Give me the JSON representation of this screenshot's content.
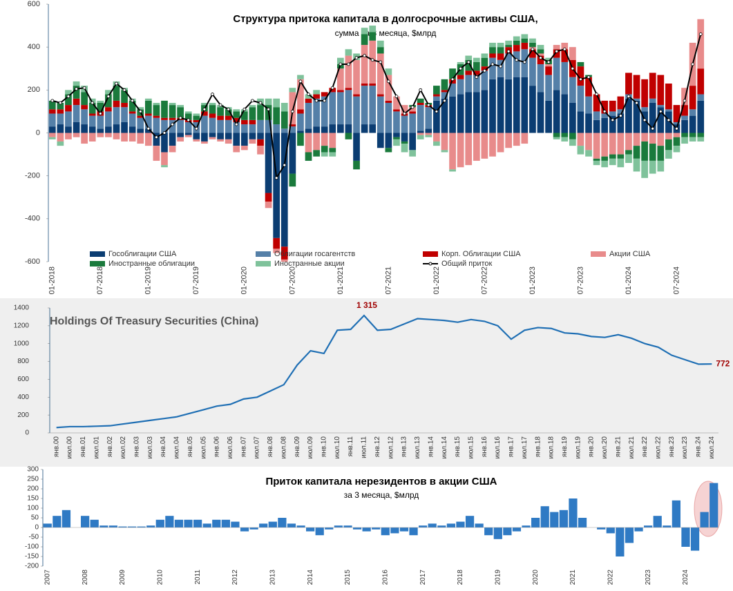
{
  "chart_data": [
    {
      "type": "stacked_bar",
      "title": "Структура притока капитала в долгосрочные активы США,",
      "subtitle": "сумма за 3 месяца, $млрд",
      "categories": [
        "01-2018",
        null,
        null,
        null,
        null,
        null,
        "07-2018",
        null,
        null,
        null,
        null,
        null,
        "01-2019",
        null,
        null,
        null,
        null,
        null,
        "07-2019",
        null,
        null,
        null,
        null,
        null,
        "01-2020",
        null,
        null,
        null,
        null,
        null,
        "07-2020",
        null,
        null,
        null,
        null,
        null,
        "01-2021",
        null,
        null,
        null,
        null,
        null,
        "07-2021",
        null,
        null,
        null,
        null,
        null,
        "01-2022",
        null,
        null,
        null,
        null,
        null,
        "07-2022",
        null,
        null,
        null,
        null,
        null,
        "01-2023",
        null,
        null,
        null,
        null,
        null,
        "07-2023",
        null,
        null,
        null,
        null,
        null,
        "01-2024",
        null,
        null,
        null,
        null,
        null,
        "07-2024",
        null,
        null,
        null
      ],
      "ylim": [
        -600,
        600
      ],
      "yticks": [
        -600,
        -400,
        -200,
        0,
        200,
        400,
        600
      ],
      "series": [
        {
          "name": "Гособлигации США",
          "color": "#0b3d72",
          "values": [
            30,
            40,
            30,
            50,
            40,
            30,
            20,
            30,
            40,
            50,
            30,
            20,
            20,
            -60,
            -90,
            -60,
            -20,
            -10,
            -30,
            -40,
            -20,
            -30,
            -30,
            -60,
            -60,
            -30,
            -30,
            -280,
            -490,
            -530,
            -190,
            10,
            20,
            30,
            30,
            40,
            40,
            40,
            -130,
            40,
            40,
            -70,
            -70,
            -20,
            -40,
            -80,
            10,
            20,
            150,
            160,
            170,
            180,
            190,
            190,
            200,
            250,
            260,
            250,
            260,
            260,
            220,
            190,
            150,
            200,
            180,
            140,
            100,
            90,
            60,
            70,
            80,
            90,
            160,
            150,
            100,
            140,
            120,
            100,
            40,
            60,
            80,
            150
          ]
        },
        {
          "name": "Облигации госагентств",
          "color": "#5580a8",
          "values": [
            60,
            50,
            70,
            80,
            70,
            50,
            60,
            70,
            80,
            70,
            60,
            50,
            60,
            70,
            60,
            60,
            60,
            50,
            50,
            80,
            70,
            60,
            60,
            50,
            40,
            40,
            60,
            60,
            40,
            20,
            30,
            80,
            120,
            130,
            140,
            150,
            150,
            160,
            170,
            180,
            180,
            170,
            140,
            100,
            80,
            90,
            120,
            100,
            20,
            30,
            60,
            70,
            80,
            80,
            90,
            100,
            80,
            120,
            120,
            130,
            130,
            130,
            120,
            150,
            150,
            120,
            120,
            80,
            40,
            20,
            20,
            20,
            20,
            10,
            20,
            20,
            10,
            10,
            10,
            20,
            30,
            30
          ]
        },
        {
          "name": "Корп. Облигации США",
          "color": "#c00000",
          "values": [
            20,
            20,
            30,
            30,
            20,
            10,
            20,
            20,
            30,
            20,
            10,
            10,
            10,
            10,
            10,
            10,
            10,
            10,
            10,
            20,
            20,
            20,
            20,
            20,
            20,
            20,
            -30,
            -40,
            -50,
            -60,
            10,
            20,
            20,
            20,
            20,
            20,
            10,
            10,
            10,
            10,
            10,
            10,
            10,
            10,
            10,
            10,
            10,
            10,
            10,
            10,
            20,
            20,
            20,
            20,
            20,
            20,
            30,
            30,
            30,
            30,
            40,
            40,
            40,
            40,
            60,
            80,
            90,
            90,
            80,
            60,
            50,
            60,
            100,
            110,
            130,
            120,
            140,
            120,
            80,
            50,
            110,
            120
          ]
        },
        {
          "name": "Акции США",
          "color": "#e88b8b",
          "values": [
            -20,
            -40,
            -30,
            -20,
            -50,
            -40,
            -20,
            -20,
            -30,
            -40,
            -40,
            -50,
            -60,
            -70,
            -60,
            -30,
            -20,
            -10,
            -10,
            -10,
            -10,
            -10,
            -20,
            -30,
            -20,
            -20,
            -40,
            -30,
            -20,
            -10,
            150,
            140,
            -90,
            -80,
            -60,
            -70,
            100,
            150,
            160,
            180,
            200,
            190,
            120,
            60,
            40,
            20,
            -10,
            -10,
            -40,
            -80,
            -170,
            -160,
            -150,
            -130,
            -120,
            -110,
            -90,
            -70,
            -60,
            -50,
            10,
            10,
            10,
            20,
            30,
            60,
            -60,
            -80,
            -120,
            -110,
            -100,
            -100,
            -80,
            -60,
            -40,
            -50,
            -60,
            -30,
            -20,
            80,
            200,
            230
          ]
        },
        {
          "name": "Иностранные облигации",
          "color": "#1a7a3c",
          "values": [
            40,
            30,
            50,
            60,
            60,
            50,
            40,
            60,
            70,
            60,
            50,
            30,
            60,
            50,
            80,
            60,
            50,
            30,
            20,
            30,
            40,
            40,
            30,
            30,
            40,
            60,
            70,
            70,
            80,
            80,
            -60,
            -60,
            -40,
            -30,
            -30,
            -20,
            20,
            -30,
            -40,
            50,
            40,
            30,
            -20,
            -10,
            -10,
            10,
            20,
            10,
            40,
            50,
            50,
            50,
            50,
            40,
            40,
            30,
            30,
            10,
            20,
            20,
            20,
            20,
            20,
            -20,
            -20,
            -30,
            20,
            10,
            -10,
            -20,
            -20,
            -20,
            -20,
            -60,
            -90,
            -80,
            -70,
            -50,
            -40,
            -20,
            -20,
            -20
          ]
        },
        {
          "name": "Иностранные акции",
          "color": "#7fc29b",
          "values": [
            -10,
            -20,
            20,
            20,
            30,
            20,
            10,
            20,
            20,
            10,
            10,
            10,
            10,
            10,
            -10,
            10,
            10,
            10,
            10,
            10,
            10,
            10,
            10,
            10,
            10,
            10,
            30,
            30,
            40,
            40,
            20,
            20,
            20,
            20,
            -20,
            -20,
            30,
            30,
            30,
            30,
            30,
            30,
            30,
            -30,
            -40,
            -30,
            -20,
            -10,
            -20,
            -10,
            -10,
            10,
            20,
            20,
            20,
            20,
            20,
            20,
            20,
            20,
            20,
            20,
            10,
            -10,
            -20,
            -30,
            -40,
            -30,
            -20,
            -30,
            -30,
            -40,
            -40,
            -60,
            -80,
            -60,
            -50,
            -40,
            -30,
            -30,
            -20,
            -20
          ]
        },
        {
          "name": "Общий приток",
          "color": "#000000",
          "type": "line",
          "values": [
            150,
            140,
            170,
            205,
            210,
            140,
            90,
            170,
            230,
            200,
            150,
            100,
            20,
            -20,
            0,
            40,
            70,
            60,
            20,
            110,
            180,
            130,
            110,
            40,
            110,
            150,
            140,
            110,
            -210,
            -150,
            100,
            240,
            180,
            150,
            150,
            210,
            320,
            320,
            350,
            360,
            340,
            330,
            240,
            170,
            90,
            120,
            200,
            130,
            100,
            150,
            250,
            300,
            330,
            260,
            290,
            320,
            310,
            380,
            340,
            330,
            390,
            350,
            330,
            380,
            390,
            300,
            250,
            260,
            180,
            100,
            60,
            80,
            170,
            140,
            60,
            20,
            100,
            60,
            20,
            150,
            320,
            460
          ]
        }
      ]
    },
    {
      "type": "line",
      "title": "Holdings Of Treasury Securities (China)",
      "categories": [
        "янв.00",
        "июл.00",
        "янв.01",
        "июл.01",
        "янв.02",
        "июл.02",
        "янв.03",
        "июл.03",
        "янв.04",
        "июл.04",
        "янв.05",
        "июл.05",
        "янв.06",
        "июл.06",
        "янв.07",
        "июл.07",
        "янв.08",
        "июл.08",
        "янв.09",
        "июл.09",
        "янв.10",
        "июл.10",
        "янв.11",
        "июл.11",
        "янв.12",
        "июл.12",
        "янв.13",
        "июл.13",
        "янв.14",
        "июл.14",
        "янв.15",
        "июл.15",
        "янв.16",
        "июл.16",
        "янв.17",
        "июл.17",
        "янв.18",
        "июл.18",
        "янв.19",
        "июл.19",
        "янв.20",
        "июл.20",
        "янв.21",
        "июл.21",
        "янв.22",
        "июл.22",
        "янв.23",
        "июл.23",
        "янв.24",
        "июл.24"
      ],
      "values": [
        60,
        70,
        70,
        75,
        80,
        100,
        120,
        140,
        160,
        180,
        220,
        260,
        300,
        320,
        380,
        400,
        470,
        540,
        760,
        920,
        890,
        1150,
        1160,
        1315,
        1150,
        1160,
        1220,
        1280,
        1270,
        1260,
        1240,
        1270,
        1250,
        1200,
        1050,
        1150,
        1180,
        1170,
        1120,
        1110,
        1080,
        1070,
        1100,
        1060,
        1000,
        960,
        870,
        820,
        770,
        772
      ],
      "value_labels": [
        null,
        null,
        null,
        null,
        null,
        null,
        null,
        null,
        null,
        null,
        null,
        null,
        null,
        null,
        null,
        null,
        null,
        null,
        null,
        null,
        null,
        null,
        null,
        "1 315",
        null,
        null,
        null,
        null,
        null,
        null,
        null,
        null,
        null,
        null,
        null,
        null,
        null,
        null,
        null,
        null,
        null,
        null,
        null,
        null,
        null,
        null,
        null,
        null,
        null,
        "772"
      ],
      "color": "#1f6fb4",
      "ylim": [
        0,
        1400
      ],
      "yticks": [
        0,
        200,
        400,
        600,
        800,
        1000,
        1200,
        1400
      ]
    },
    {
      "type": "bar",
      "title": "Приток капитала нерезидентов в акции США",
      "subtitle": "за 3 месяца, $млрд",
      "categories": [
        "2007",
        null,
        null,
        null,
        "2008",
        null,
        null,
        null,
        "2009",
        null,
        null,
        null,
        "2010",
        null,
        null,
        null,
        "2011",
        null,
        null,
        null,
        "2012",
        null,
        null,
        null,
        "2013",
        null,
        null,
        null,
        "2014",
        null,
        null,
        null,
        "2015",
        null,
        null,
        null,
        "2016",
        null,
        null,
        null,
        "2017",
        null,
        null,
        null,
        "2018",
        null,
        null,
        null,
        "2019",
        null,
        null,
        null,
        "2020",
        null,
        null,
        null,
        "2021",
        null,
        null,
        null,
        "2022",
        null,
        null,
        null,
        "2023",
        null,
        null,
        null,
        "2024",
        null,
        null,
        null
      ],
      "values": [
        20,
        60,
        90,
        0,
        60,
        40,
        10,
        10,
        5,
        5,
        5,
        10,
        40,
        60,
        40,
        40,
        40,
        20,
        40,
        40,
        30,
        -20,
        -10,
        20,
        30,
        50,
        20,
        10,
        -20,
        -40,
        -10,
        10,
        10,
        -10,
        -20,
        -10,
        -40,
        -30,
        -20,
        -40,
        10,
        20,
        10,
        20,
        30,
        60,
        20,
        -40,
        -60,
        -40,
        -20,
        10,
        50,
        110,
        80,
        90,
        150,
        50,
        0,
        -10,
        -30,
        -150,
        -80,
        -20,
        10,
        60,
        10,
        140,
        -100,
        -120,
        80,
        230
      ],
      "color": "#2f7ac4",
      "ylim": [
        -200,
        300
      ],
      "yticks": [
        -200,
        -150,
        -100,
        -50,
        0,
        50,
        100,
        150,
        200,
        250,
        300
      ]
    }
  ]
}
